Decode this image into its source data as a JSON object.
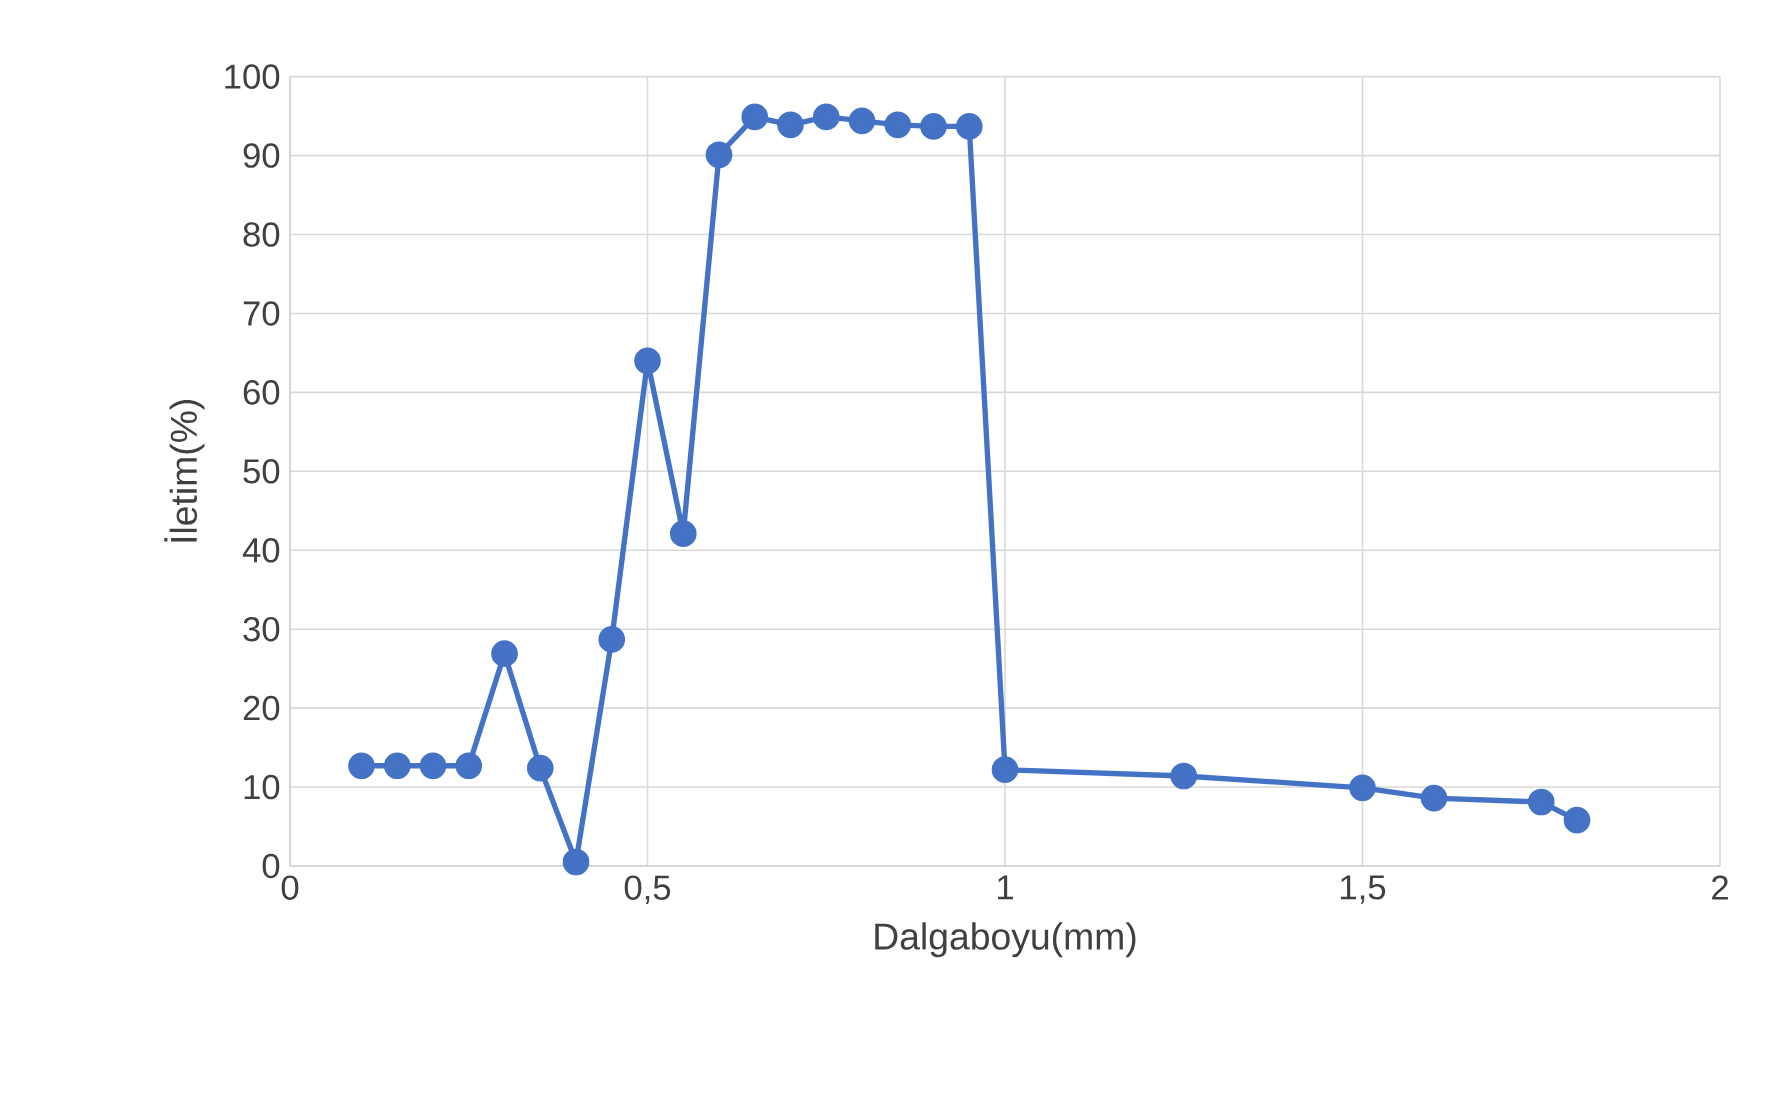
{
  "chart_data": {
    "type": "line",
    "xlabel": "Dalgaboyu(mm)",
    "ylabel": "İletim(%)",
    "xlim": [
      0,
      2
    ],
    "ylim": [
      0,
      100
    ],
    "xticks": [
      0,
      {
        "value": 0.5,
        "label": "0,5"
      },
      1,
      {
        "value": 1.5,
        "label": "1,5"
      },
      2
    ],
    "yticks": [
      0,
      10,
      20,
      30,
      40,
      50,
      60,
      70,
      80,
      90,
      100
    ],
    "grid": true,
    "marker": "circle",
    "line_style": "solid",
    "series": [
      {
        "color": "#4472c4",
        "x": [
          0.1,
          0.15,
          0.2,
          0.25,
          0.3,
          0.35,
          0.4,
          0.45,
          0.5,
          0.55,
          0.6,
          0.65,
          0.7,
          0.75,
          0.8,
          0.85,
          0.9,
          0.95,
          1.0,
          1.25,
          1.5,
          1.6,
          1.75,
          1.8
        ],
        "values": [
          12.7,
          12.7,
          12.7,
          12.7,
          26.9,
          12.4,
          0.5,
          28.7,
          64,
          42.1,
          90.1,
          94.9,
          93.9,
          94.9,
          94.4,
          93.9,
          93.7,
          93.7,
          12.2,
          11.4,
          9.9,
          8.6,
          8.1,
          5.8
        ]
      }
    ]
  }
}
